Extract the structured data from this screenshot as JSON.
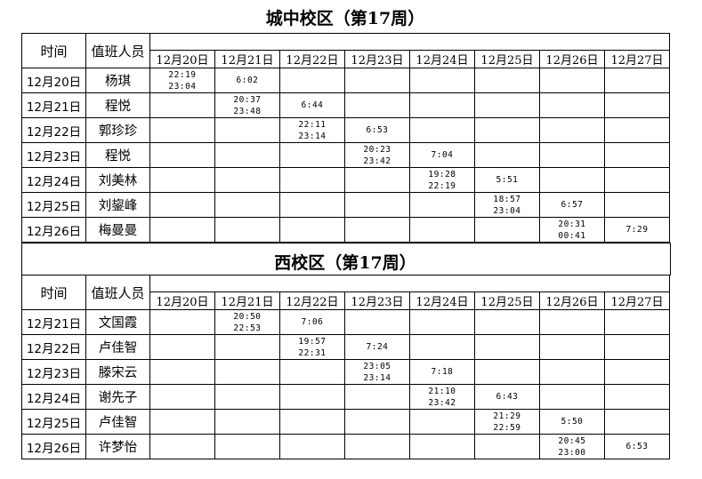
{
  "dates": [
    "12月20日",
    "12月21日",
    "12月22日",
    "12月23日",
    "12月24日",
    "12月25日",
    "12月26日",
    "12月27日"
  ],
  "headers": {
    "time": "时间",
    "staff": "值班人员"
  },
  "sections": [
    {
      "title": "城中校区（第17周）",
      "rows": [
        {
          "date": "12月20日",
          "name": "杨琪",
          "cells": [
            "22:19\n23:04",
            "6:02",
            "",
            "",
            "",
            "",
            "",
            ""
          ]
        },
        {
          "date": "12月21日",
          "name": "程悦",
          "cells": [
            "",
            "20:37\n23:48",
            "6:44",
            "",
            "",
            "",
            "",
            ""
          ]
        },
        {
          "date": "12月22日",
          "name": "郭珍珍",
          "cells": [
            "",
            "",
            "22:11\n23:14",
            "6:53",
            "",
            "",
            "",
            ""
          ]
        },
        {
          "date": "12月23日",
          "name": "程悦",
          "cells": [
            "",
            "",
            "",
            "20:23\n23:42",
            "7:04",
            "",
            "",
            ""
          ]
        },
        {
          "date": "12月24日",
          "name": "刘美林",
          "cells": [
            "",
            "",
            "",
            "",
            "19:28\n22:19",
            "5:51",
            "",
            ""
          ]
        },
        {
          "date": "12月25日",
          "name": "刘鋆峰",
          "cells": [
            "",
            "",
            "",
            "",
            "",
            "18:57\n23:04",
            "6:57",
            ""
          ]
        },
        {
          "date": "12月26日",
          "name": "梅曼曼",
          "cells": [
            "",
            "",
            "",
            "",
            "",
            "",
            "20:31\n00:41",
            "7:29"
          ]
        }
      ]
    },
    {
      "title": "西校区（第17周）",
      "rows": [
        {
          "date": "12月21日",
          "name": "文国霞",
          "cells": [
            "",
            "20:50\n22:53",
            "7:06",
            "",
            "",
            "",
            "",
            ""
          ]
        },
        {
          "date": "12月22日",
          "name": "卢佳智",
          "cells": [
            "",
            "",
            "19:57\n22:31",
            "7:24",
            "",
            "",
            "",
            ""
          ]
        },
        {
          "date": "12月23日",
          "name": "滕宋云",
          "cells": [
            "",
            "",
            "",
            "23:05\n23:14",
            "7:18",
            "",
            "",
            ""
          ]
        },
        {
          "date": "12月24日",
          "name": "谢先子",
          "cells": [
            "",
            "",
            "",
            "",
            "21:10\n23:42",
            "6:43",
            "",
            ""
          ]
        },
        {
          "date": "12月25日",
          "name": "卢佳智",
          "cells": [
            "",
            "",
            "",
            "",
            "",
            "21:29\n22:59",
            "5:50",
            ""
          ]
        },
        {
          "date": "12月26日",
          "name": "许梦怡",
          "cells": [
            "",
            "",
            "",
            "",
            "",
            "",
            "20:45\n23:00",
            "6:53"
          ]
        }
      ]
    }
  ]
}
